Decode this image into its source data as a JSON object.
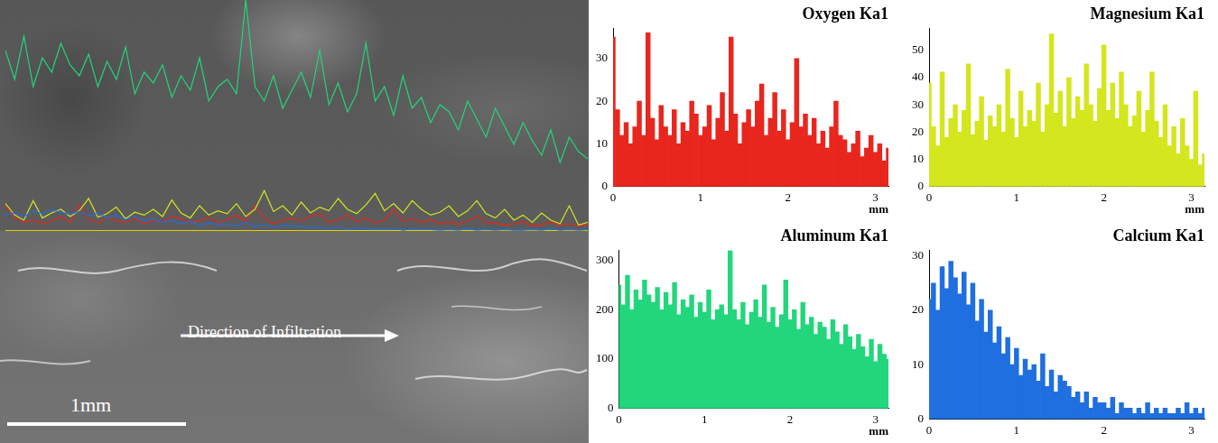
{
  "micrograph": {
    "arrow_label": "Direction of Infiltration",
    "scale_bar_label": "1mm"
  },
  "chart_data": [
    {
      "type": "bar",
      "title": "Oxygen Ka1",
      "color": "#e8261e",
      "x_label": "mm",
      "x": [
        0,
        0.05,
        0.1,
        0.15,
        0.2,
        0.25,
        0.3,
        0.35,
        0.4,
        0.45,
        0.5,
        0.55,
        0.6,
        0.65,
        0.7,
        0.75,
        0.8,
        0.85,
        0.9,
        0.95,
        1,
        1.05,
        1.1,
        1.15,
        1.2,
        1.25,
        1.3,
        1.35,
        1.4,
        1.45,
        1.5,
        1.55,
        1.6,
        1.65,
        1.7,
        1.75,
        1.8,
        1.85,
        1.9,
        1.95,
        2,
        2.05,
        2.1,
        2.15,
        2.2,
        2.25,
        2.3,
        2.35,
        2.4,
        2.45,
        2.5,
        2.55,
        2.6,
        2.65,
        2.7,
        2.75,
        2.8,
        2.85,
        2.9,
        2.95,
        3,
        3.05,
        3.1,
        3.15
      ],
      "values": [
        35,
        18,
        12,
        15,
        10,
        14,
        20,
        12,
        36,
        16,
        11,
        19,
        14,
        12,
        18,
        10,
        15,
        13,
        20,
        17,
        12,
        14,
        19,
        11,
        16,
        22,
        13,
        35,
        17,
        10,
        15,
        18,
        14,
        20,
        24,
        12,
        16,
        22,
        13,
        18,
        11,
        15,
        30,
        14,
        17,
        12,
        16,
        10,
        13,
        9,
        14,
        20,
        12,
        11,
        8,
        10,
        13,
        7,
        9,
        12,
        8,
        10,
        6,
        9
      ],
      "xlim": [
        0,
        3.15
      ],
      "xticks": [
        0,
        1,
        2,
        3
      ],
      "ylim": [
        0,
        37
      ],
      "yticks": [
        0,
        10,
        20,
        30
      ],
      "grid": false
    },
    {
      "type": "bar",
      "title": "Magnesium Ka1",
      "color": "#d4e61e",
      "x_label": "mm",
      "x": [
        0,
        0.05,
        0.1,
        0.15,
        0.2,
        0.25,
        0.3,
        0.35,
        0.4,
        0.45,
        0.5,
        0.55,
        0.6,
        0.65,
        0.7,
        0.75,
        0.8,
        0.85,
        0.9,
        0.95,
        1,
        1.05,
        1.1,
        1.15,
        1.2,
        1.25,
        1.3,
        1.35,
        1.4,
        1.45,
        1.5,
        1.55,
        1.6,
        1.65,
        1.7,
        1.75,
        1.8,
        1.85,
        1.9,
        1.95,
        2,
        2.05,
        2.1,
        2.15,
        2.2,
        2.25,
        2.3,
        2.35,
        2.4,
        2.45,
        2.5,
        2.55,
        2.6,
        2.65,
        2.7,
        2.75,
        2.8,
        2.85,
        2.9,
        2.95,
        3,
        3.05,
        3.1,
        3.15
      ],
      "values": [
        38,
        22,
        15,
        42,
        18,
        25,
        30,
        20,
        28,
        45,
        19,
        24,
        33,
        17,
        26,
        22,
        30,
        20,
        43,
        25,
        18,
        35,
        22,
        28,
        24,
        38,
        20,
        30,
        56,
        27,
        35,
        22,
        40,
        25,
        33,
        28,
        45,
        30,
        24,
        36,
        52,
        28,
        38,
        25,
        42,
        30,
        22,
        26,
        35,
        20,
        28,
        42,
        24,
        18,
        30,
        15,
        22,
        12,
        25,
        15,
        10,
        35,
        8,
        12
      ],
      "xlim": [
        0,
        3.15
      ],
      "xticks": [
        0,
        1,
        2,
        3
      ],
      "ylim": [
        0,
        58
      ],
      "yticks": [
        0,
        10,
        20,
        30,
        40,
        50
      ],
      "grid": false
    },
    {
      "type": "bar",
      "title": "Aluminum Ka1",
      "color": "#22d67c",
      "x_label": "mm",
      "x": [
        0,
        0.05,
        0.1,
        0.15,
        0.2,
        0.25,
        0.3,
        0.35,
        0.4,
        0.45,
        0.5,
        0.55,
        0.6,
        0.65,
        0.7,
        0.75,
        0.8,
        0.85,
        0.9,
        0.95,
        1,
        1.05,
        1.1,
        1.15,
        1.2,
        1.25,
        1.3,
        1.35,
        1.4,
        1.45,
        1.5,
        1.55,
        1.6,
        1.65,
        1.7,
        1.75,
        1.8,
        1.85,
        1.9,
        1.95,
        2,
        2.05,
        2.1,
        2.15,
        2.2,
        2.25,
        2.3,
        2.35,
        2.4,
        2.45,
        2.5,
        2.55,
        2.6,
        2.65,
        2.7,
        2.75,
        2.8,
        2.85,
        2.9,
        2.95,
        3,
        3.05,
        3.1,
        3.15
      ],
      "values": [
        250,
        210,
        270,
        200,
        240,
        220,
        260,
        230,
        215,
        245,
        200,
        235,
        210,
        255,
        190,
        220,
        205,
        230,
        185,
        215,
        195,
        240,
        180,
        200,
        210,
        190,
        320,
        200,
        180,
        215,
        170,
        195,
        220,
        185,
        250,
        175,
        205,
        165,
        190,
        260,
        180,
        200,
        160,
        215,
        170,
        185,
        150,
        175,
        165,
        140,
        180,
        155,
        130,
        170,
        145,
        120,
        150,
        125,
        105,
        140,
        95,
        130,
        110,
        100
      ],
      "xlim": [
        0,
        3.15
      ],
      "xticks": [
        0,
        1,
        2,
        3
      ],
      "ylim": [
        0,
        320
      ],
      "yticks": [
        0,
        100,
        200,
        300
      ],
      "grid": false
    },
    {
      "type": "bar",
      "title": "Calcium Ka1",
      "color": "#1f6fe0",
      "x": [
        0,
        0.05,
        0.1,
        0.15,
        0.2,
        0.25,
        0.3,
        0.35,
        0.4,
        0.45,
        0.5,
        0.55,
        0.6,
        0.65,
        0.7,
        0.75,
        0.8,
        0.85,
        0.9,
        0.95,
        1,
        1.05,
        1.1,
        1.15,
        1.2,
        1.25,
        1.3,
        1.35,
        1.4,
        1.45,
        1.5,
        1.55,
        1.6,
        1.65,
        1.7,
        1.75,
        1.8,
        1.85,
        1.9,
        1.95,
        2,
        2.05,
        2.1,
        2.15,
        2.2,
        2.25,
        2.3,
        2.35,
        2.4,
        2.45,
        2.5,
        2.55,
        2.6,
        2.65,
        2.7,
        2.75,
        2.8,
        2.85,
        2.9,
        2.95,
        3,
        3.05,
        3.1,
        3.15
      ],
      "values": [
        22,
        25,
        20,
        28,
        24,
        29,
        26,
        23,
        27,
        21,
        25,
        18,
        22,
        16,
        20,
        14,
        17,
        12,
        15,
        10,
        13,
        8,
        11,
        9,
        10,
        7,
        12,
        6,
        9,
        5,
        8,
        7,
        6,
        4,
        5,
        3,
        5,
        2,
        4,
        3,
        3,
        2,
        4,
        1,
        3,
        2,
        2,
        1,
        2,
        1,
        3,
        1,
        2,
        1,
        2,
        1,
        1,
        2,
        1,
        3,
        1,
        2,
        1,
        2
      ],
      "xlim": [
        0,
        3.15
      ],
      "xticks": [
        0,
        1,
        2,
        3
      ],
      "ylim": [
        0,
        31
      ],
      "yticks": [
        0,
        10,
        20,
        30
      ],
      "grid": false
    }
  ]
}
